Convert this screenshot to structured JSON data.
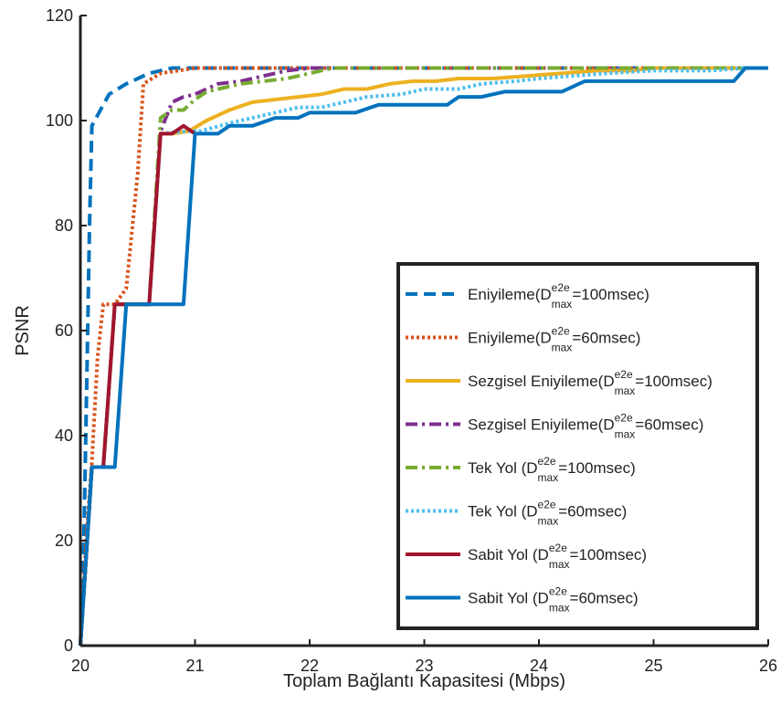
{
  "chart_data": {
    "type": "line",
    "title": "",
    "xlabel": "Toplam Bağlantı Kapasitesi (Mbps)",
    "ylabel": "PSNR",
    "xlim": [
      20,
      26
    ],
    "ylim": [
      0,
      120
    ],
    "xticks": [
      "20",
      "21",
      "22",
      "23",
      "24",
      "25",
      "26"
    ],
    "yticks": [
      "0",
      "20",
      "40",
      "60",
      "80",
      "100",
      "120"
    ],
    "grid": false,
    "legend_position": "right-center",
    "series": [
      {
        "name": "Eniyileme(D^{e2e}_{max}=100msec)",
        "legend_base": "Eniyileme(D",
        "legend_sup": "e2e",
        "legend_sub": "max",
        "legend_tail": "=100msec)",
        "color": "#0072bd",
        "dash": "dashed",
        "x": [
          20.0,
          20.03,
          20.06,
          20.08,
          20.1,
          20.15,
          20.25,
          20.4,
          20.6,
          20.8,
          21.0,
          26.0
        ],
        "y": [
          0,
          20,
          55,
          80,
          99,
          101,
          105,
          107,
          109,
          110,
          110,
          110
        ]
      },
      {
        "name": "Eniyileme(D^{e2e}_{max}=60msec)",
        "legend_base": "Eniyileme(D",
        "legend_sup": "e2e",
        "legend_sub": "max",
        "legend_tail": "=60msec)",
        "color": "#d95319",
        "dash": "dotted",
        "x": [
          20.0,
          20.05,
          20.1,
          20.15,
          20.2,
          20.3,
          20.4,
          20.5,
          20.55,
          20.7,
          21.0,
          26.0
        ],
        "y": [
          0,
          20,
          35,
          55,
          65,
          65,
          68,
          90,
          107,
          109,
          110,
          110
        ]
      },
      {
        "name": "Sezgisel Eniyileme(D^{e2e}_{max}=100msec)",
        "legend_base": "Sezgisel Eniyileme(D",
        "legend_sup": "e2e",
        "legend_sub": "max",
        "legend_tail": "=100msec)",
        "color": "#edb120",
        "dash": "solid",
        "x": [
          20.0,
          20.1,
          20.2,
          20.3,
          20.6,
          20.7,
          20.8,
          20.95,
          21.1,
          21.3,
          21.5,
          21.7,
          21.9,
          22.1,
          22.3,
          22.5,
          22.7,
          22.9,
          23.1,
          23.3,
          23.6,
          23.9,
          24.2,
          24.5,
          24.8,
          25.0,
          25.5,
          26.0
        ],
        "y": [
          0,
          34,
          34,
          65,
          65,
          97.5,
          97.5,
          98,
          100,
          102,
          103.5,
          104,
          104.5,
          105,
          106,
          106,
          107,
          107.5,
          107.5,
          108,
          108,
          108.5,
          109,
          109.5,
          109.5,
          110,
          110,
          110
        ]
      },
      {
        "name": "Sezgisel Eniyileme(D^{e2e}_{max}=60msec)",
        "legend_base": "Sezgisel Eniyileme(D",
        "legend_sup": "e2e",
        "legend_sub": "max",
        "legend_tail": "=60msec)",
        "color": "#7e2f8e",
        "dash": "dashdot",
        "x": [
          20.0,
          20.1,
          20.2,
          20.3,
          20.6,
          20.7,
          20.8,
          20.9,
          21.0,
          21.1,
          21.2,
          21.4,
          21.6,
          21.8,
          22.0,
          22.2,
          22.5,
          26.0
        ],
        "y": [
          0,
          34,
          34,
          65,
          65,
          98,
          103.5,
          104.5,
          105,
          106,
          107,
          107.5,
          108.5,
          109.5,
          110,
          110,
          110,
          110
        ]
      },
      {
        "name": "Tek Yol (D^{e2e}_{max}=100msec)",
        "legend_base": "Tek Yol (D",
        "legend_sup": "e2e",
        "legend_sub": "max",
        "legend_tail": "=100msec)",
        "color": "#77ac30",
        "dash": "dashdot",
        "x": [
          20.0,
          20.1,
          20.2,
          20.3,
          20.6,
          20.7,
          20.8,
          20.9,
          21.0,
          21.1,
          21.2,
          21.4,
          21.6,
          21.8,
          22.0,
          22.2,
          22.5,
          26.0
        ],
        "y": [
          0,
          34,
          34,
          65,
          65,
          100.5,
          102,
          102,
          104,
          105.5,
          106,
          107,
          107.5,
          108,
          109,
          110,
          110,
          110
        ]
      },
      {
        "name": "Tek Yol (D^{e2e}_{max}=60msec)",
        "legend_base": "Tek Yol (D",
        "legend_sup": "e2e",
        "legend_sub": "max",
        "legend_tail": "=60msec)",
        "color": "#4dbeee",
        "dash": "dotted",
        "x": [
          20.0,
          20.1,
          20.2,
          20.3,
          20.6,
          20.7,
          20.95,
          21.05,
          21.3,
          21.5,
          21.7,
          21.9,
          22.1,
          22.3,
          22.5,
          22.8,
          23.0,
          23.3,
          23.5,
          23.8,
          24.0,
          24.3,
          24.6,
          25.0,
          25.5,
          25.8,
          26.0
        ],
        "y": [
          0,
          34,
          34,
          65,
          65,
          97.5,
          98,
          98,
          99.5,
          100.5,
          101.5,
          102.5,
          102.5,
          103.5,
          104.5,
          105,
          106,
          106,
          107,
          107.5,
          108,
          108.5,
          109,
          109.5,
          109.5,
          110,
          110
        ]
      },
      {
        "name": "Sabit Yol (D^{e2e}_{max}=100msec)",
        "legend_base": "Sabit Yol (D",
        "legend_sup": "e2e",
        "legend_sub": "max",
        "legend_tail": "=100msec)",
        "color": "#a2142f",
        "dash": "solid",
        "x": [
          20.0,
          20.1,
          20.2,
          20.3,
          20.6,
          20.7,
          20.8,
          20.9,
          21.0
        ],
        "y": [
          0,
          34,
          34,
          65,
          65,
          97.5,
          97.5,
          99,
          97.5
        ]
      },
      {
        "name": "Sabit Yol (D^{e2e}_{max}=60msec)",
        "legend_base": "Sabit Yol (D",
        "legend_sup": "e2e",
        "legend_sub": "max",
        "legend_tail": "=60msec)",
        "color": "#0072bd",
        "dash": "solid",
        "x": [
          20.0,
          20.1,
          20.3,
          20.4,
          20.9,
          21.0,
          21.2,
          21.3,
          21.5,
          21.7,
          21.9,
          22.0,
          22.2,
          22.4,
          22.6,
          22.8,
          23.0,
          23.2,
          23.3,
          23.5,
          23.7,
          24.0,
          24.2,
          24.4,
          24.6,
          24.8,
          25.0,
          25.3,
          25.5,
          25.7,
          25.8,
          26.0
        ],
        "y": [
          0,
          34,
          34,
          65,
          65,
          97.5,
          97.5,
          99,
          99,
          100.5,
          100.5,
          101.5,
          101.5,
          101.5,
          103,
          103,
          103,
          103,
          104.5,
          104.5,
          105.5,
          105.5,
          105.5,
          107.5,
          107.5,
          107.5,
          107.5,
          107.5,
          107.5,
          107.5,
          110,
          110
        ]
      }
    ]
  }
}
